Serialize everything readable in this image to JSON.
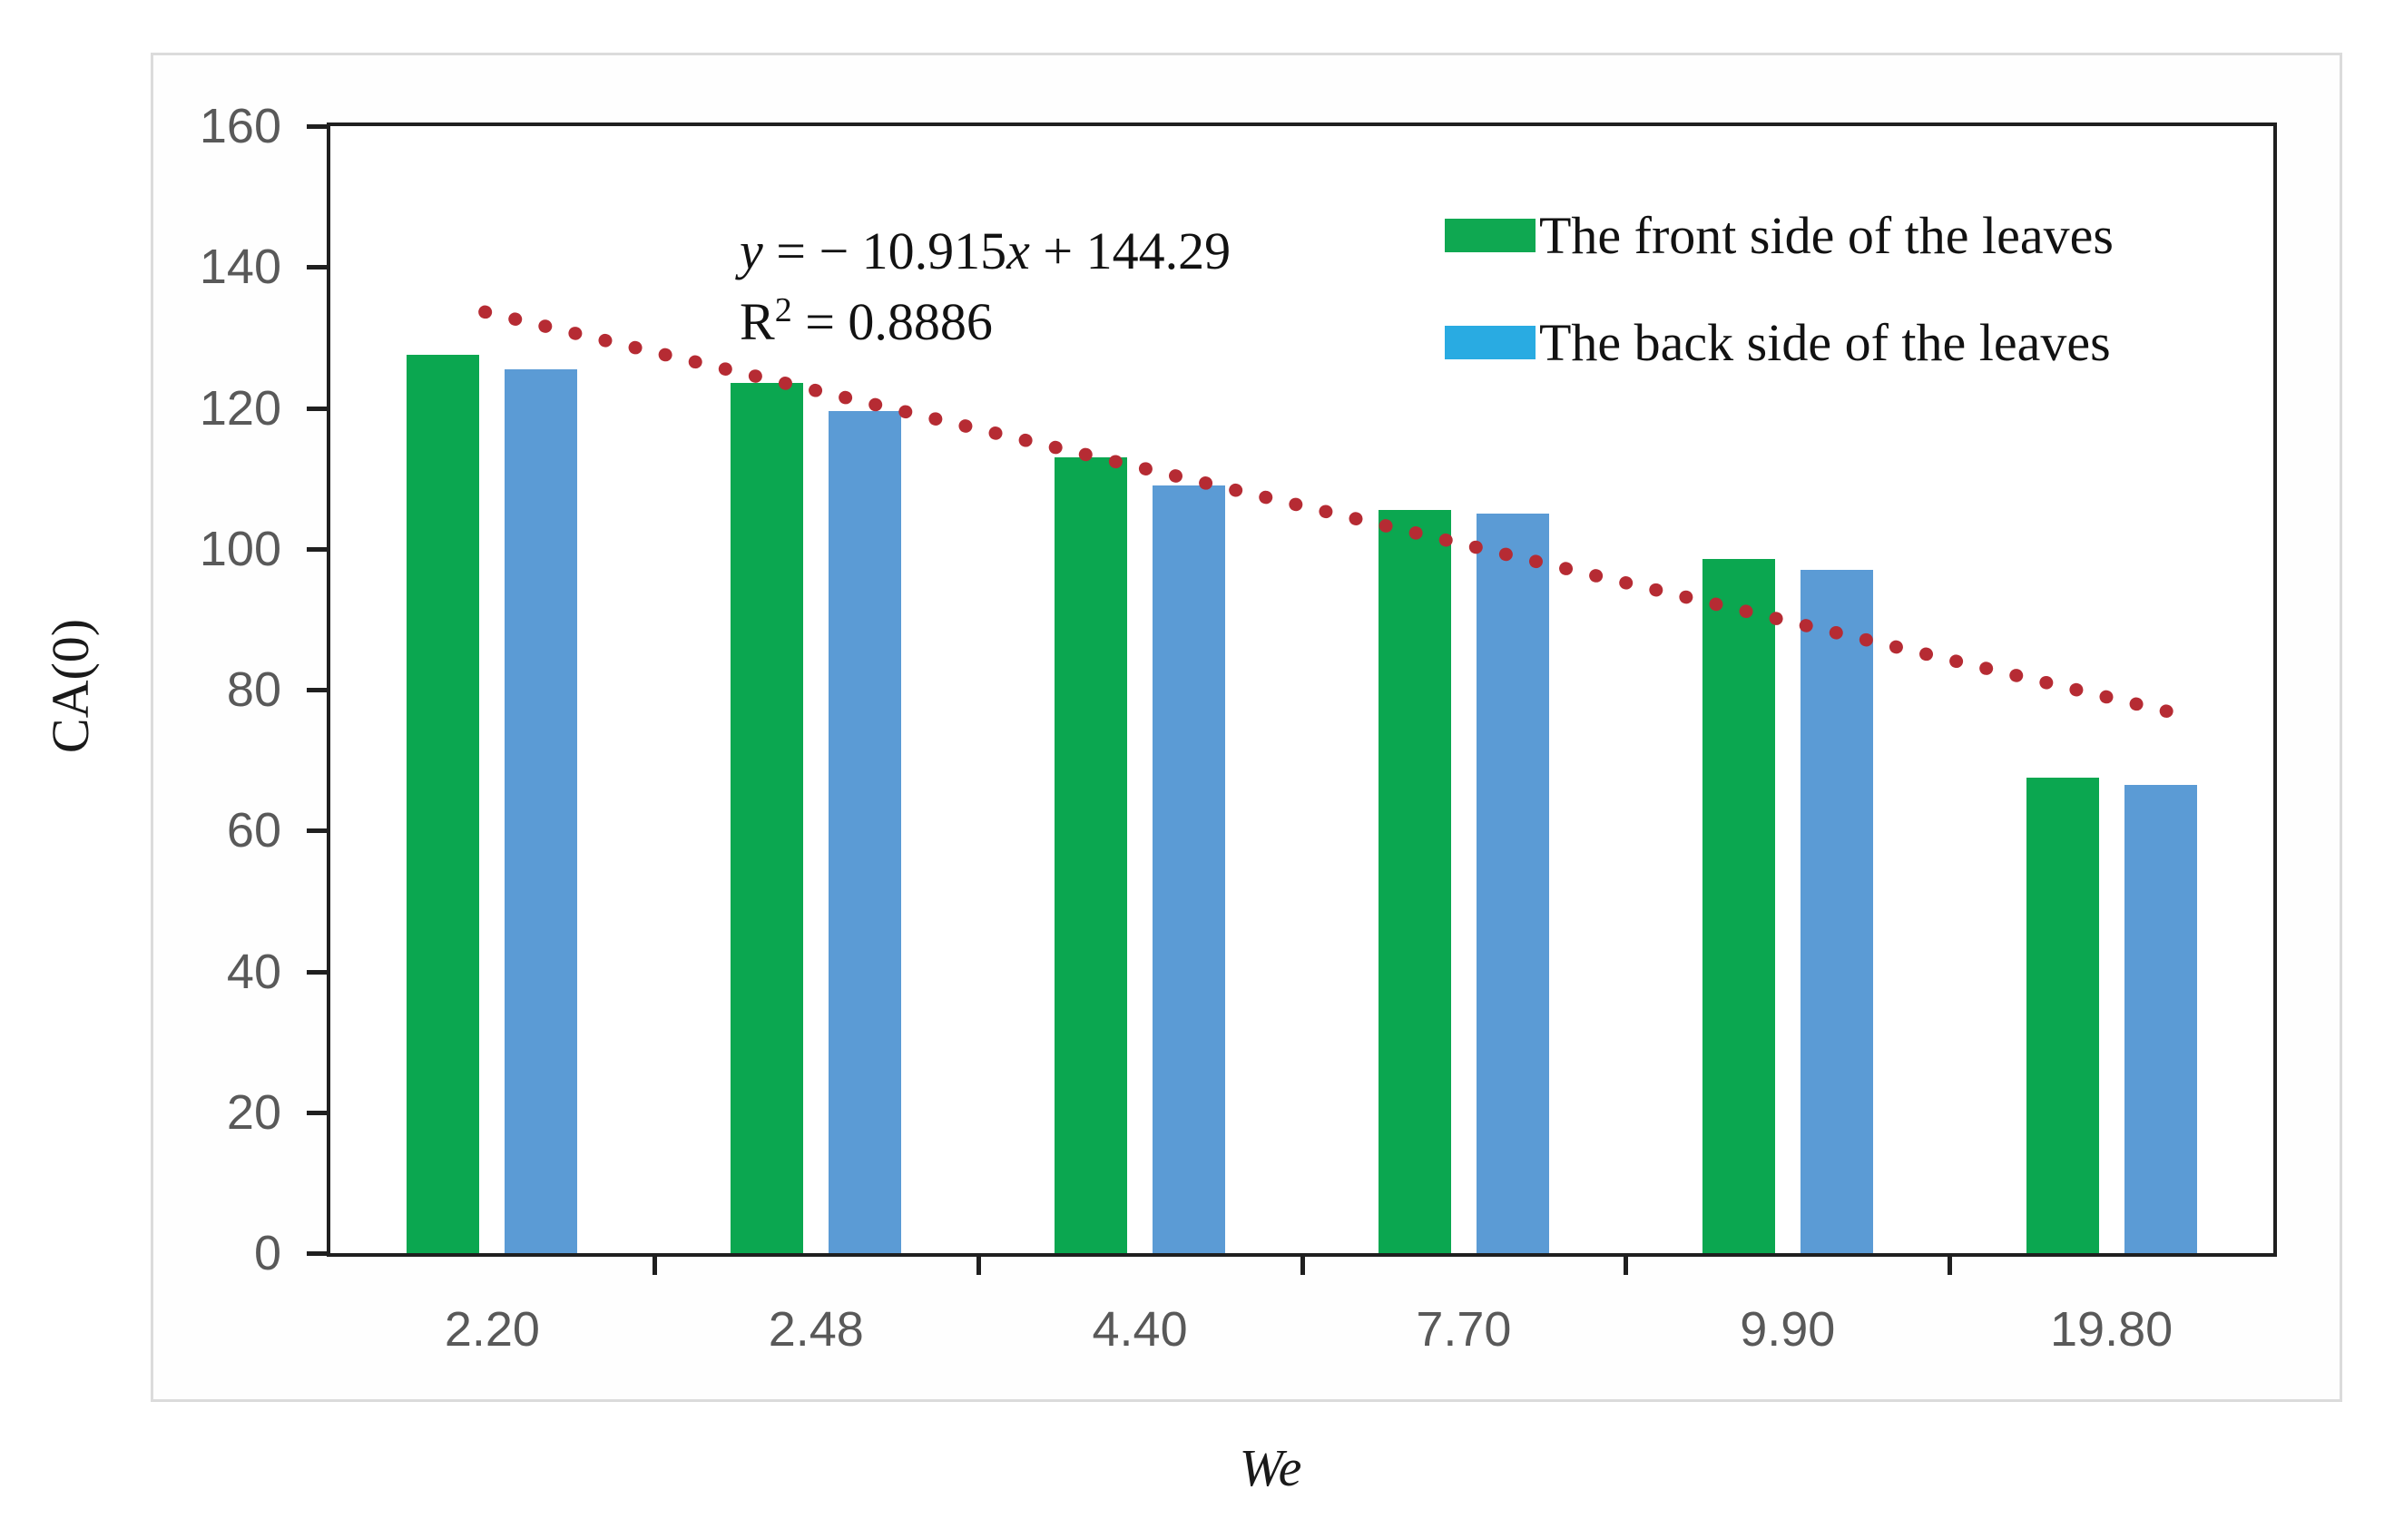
{
  "figure": {
    "y_axis_title": "CA(0)",
    "x_axis_title": "We"
  },
  "equation": {
    "y_var": "y",
    "mid": " = − 10.915",
    "x_var": "x",
    "tail": " + 144.29",
    "r_base": "R",
    "r_sup": "2",
    "r_tail": " = 0.8886"
  },
  "legend": [
    {
      "label": "The front side of the leaves",
      "color": "#0FA851"
    },
    {
      "label": "The back side of the leaves",
      "color": "#29ABE2"
    }
  ],
  "colors": {
    "front_bar": "#0BA750",
    "back_bar": "#5B9BD5",
    "trendline": "#B62B33",
    "axis": "#1F1F1F",
    "tick_text": "#595959",
    "frame_border": "#DBDBDB"
  },
  "chart_data": {
    "type": "bar",
    "categories": [
      "2.20",
      "2.48",
      "4.40",
      "7.70",
      "9.90",
      "19.80"
    ],
    "series": [
      {
        "name": "The front side of the leaves",
        "color": "#0BA750",
        "values": [
          127.5,
          123.5,
          113,
          105.5,
          98.5,
          67.5
        ]
      },
      {
        "name": "The back side of the leaves",
        "color": "#5B9BD5",
        "values": [
          125.5,
          119.5,
          109,
          105,
          97,
          66.5
        ]
      }
    ],
    "trendline": {
      "equation_text": "y = − 10.915x + 144.29",
      "r_squared_text": "R² = 0.8886",
      "slope": -10.915,
      "intercept": 144.29,
      "r2": 0.8886,
      "style": "dotted",
      "color": "#B62B33"
    },
    "xlabel": "We",
    "ylabel": "CA(0)",
    "ylim": [
      0,
      160
    ],
    "y_ticks": [
      0,
      20,
      40,
      60,
      80,
      100,
      120,
      140,
      160
    ],
    "grid": false,
    "legend_position": "top-right"
  }
}
